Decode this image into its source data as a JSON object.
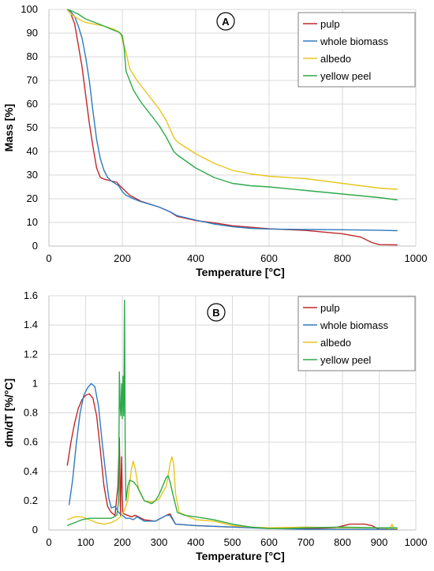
{
  "chart_data": [
    {
      "type": "line",
      "panel_label": "A",
      "xlabel": "Temperature [°C]",
      "ylabel": "Mass [%]",
      "xlim": [
        0,
        1000
      ],
      "ylim": [
        0,
        100
      ],
      "xticks": [
        0,
        200,
        400,
        600,
        800,
        1000
      ],
      "yticks": [
        0,
        10,
        20,
        30,
        40,
        50,
        60,
        70,
        80,
        90,
        100
      ],
      "grid": true,
      "legend_position": "top-right",
      "series": [
        {
          "name": "pulp",
          "color": "#c0282a",
          "points": [
            [
              50,
              100
            ],
            [
              60,
              98
            ],
            [
              70,
              94
            ],
            [
              80,
              85
            ],
            [
              90,
              76
            ],
            [
              100,
              64
            ],
            [
              110,
              52
            ],
            [
              120,
              42
            ],
            [
              130,
              33
            ],
            [
              140,
              29
            ],
            [
              150,
              28.3
            ],
            [
              170,
              27.5
            ],
            [
              185,
              27
            ],
            [
              190,
              26
            ],
            [
              200,
              24.5
            ],
            [
              220,
              21.5
            ],
            [
              250,
              19
            ],
            [
              300,
              16.5
            ],
            [
              330,
              14.5
            ],
            [
              350,
              12.5
            ],
            [
              400,
              10.8
            ],
            [
              450,
              9.8
            ],
            [
              500,
              8.6
            ],
            [
              600,
              7.3
            ],
            [
              700,
              6.6
            ],
            [
              800,
              5.2
            ],
            [
              850,
              3.8
            ],
            [
              880,
              1.5
            ],
            [
              900,
              0.6
            ],
            [
              950,
              0.5
            ]
          ]
        },
        {
          "name": "whole biomass",
          "color": "#2e7bbf",
          "points": [
            [
              50,
              100
            ],
            [
              60,
              99
            ],
            [
              70,
              97
            ],
            [
              80,
              93
            ],
            [
              90,
              88
            ],
            [
              100,
              80
            ],
            [
              110,
              70
            ],
            [
              120,
              57
            ],
            [
              130,
              45
            ],
            [
              140,
              37
            ],
            [
              150,
              32
            ],
            [
              160,
              29
            ],
            [
              170,
              27.5
            ],
            [
              180,
              26.5
            ],
            [
              190,
              25.5
            ],
            [
              200,
              23
            ],
            [
              210,
              21.5
            ],
            [
              230,
              20
            ],
            [
              250,
              18.8
            ],
            [
              300,
              16.5
            ],
            [
              330,
              14.5
            ],
            [
              350,
              12.8
            ],
            [
              400,
              11
            ],
            [
              450,
              9.3
            ],
            [
              500,
              8.2
            ],
            [
              550,
              7.5
            ],
            [
              600,
              7.2
            ],
            [
              700,
              7
            ],
            [
              800,
              6.9
            ],
            [
              900,
              6.7
            ],
            [
              950,
              6.5
            ]
          ]
        },
        {
          "name": "albedo",
          "color": "#e8c51c",
          "points": [
            [
              50,
              100
            ],
            [
              60,
              98
            ],
            [
              80,
              96
            ],
            [
              100,
              94.5
            ],
            [
              150,
              93
            ],
            [
              180,
              91.5
            ],
            [
              195,
              90
            ],
            [
              200,
              87
            ],
            [
              210,
              82
            ],
            [
              220,
              75
            ],
            [
              240,
              70
            ],
            [
              260,
              66
            ],
            [
              280,
              62
            ],
            [
              300,
              58
            ],
            [
              320,
              53
            ],
            [
              340,
              46
            ],
            [
              350,
              44
            ],
            [
              400,
              39
            ],
            [
              450,
              35
            ],
            [
              500,
              32
            ],
            [
              550,
              30.5
            ],
            [
              600,
              29.5
            ],
            [
              700,
              28.5
            ],
            [
              800,
              26.5
            ],
            [
              900,
              24.5
            ],
            [
              950,
              24
            ]
          ]
        },
        {
          "name": "yellow peel",
          "color": "#2eaa4a",
          "points": [
            [
              50,
              100
            ],
            [
              60,
              99.5
            ],
            [
              80,
              98
            ],
            [
              100,
              96
            ],
            [
              150,
              93
            ],
            [
              180,
              91
            ],
            [
              190,
              90.5
            ],
            [
              200,
              89
            ],
            [
              205,
              84
            ],
            [
              210,
              74
            ],
            [
              215,
              72
            ],
            [
              230,
              66
            ],
            [
              250,
              61
            ],
            [
              280,
              55
            ],
            [
              300,
              51
            ],
            [
              320,
              46
            ],
            [
              340,
              40
            ],
            [
              350,
              38.5
            ],
            [
              400,
              33
            ],
            [
              450,
              29
            ],
            [
              500,
              26.5
            ],
            [
              550,
              25.5
            ],
            [
              600,
              25
            ],
            [
              700,
              23.5
            ],
            [
              800,
              22
            ],
            [
              900,
              20.5
            ],
            [
              950,
              19.5
            ]
          ]
        }
      ]
    },
    {
      "type": "line",
      "panel_label": "B",
      "xlabel": "Temperature [°C]",
      "ylabel": "dm/dT [%/°C]",
      "xlim": [
        0,
        1000
      ],
      "ylim": [
        0,
        1.6
      ],
      "xticks": [
        0,
        100,
        200,
        300,
        400,
        500,
        600,
        700,
        800,
        900,
        1000
      ],
      "yticks": [
        0,
        0.2,
        0.4,
        0.6,
        0.8,
        1,
        1.2,
        1.4,
        1.6
      ],
      "ytick_labels": [
        "0",
        "0.2",
        "0.4",
        "0.6",
        "0.8",
        "1",
        "1.2",
        "1.4",
        "1.6"
      ],
      "grid": true,
      "legend_position": "top-right",
      "series": [
        {
          "name": "pulp",
          "color": "#c0282a",
          "points": [
            [
              50,
              0.44
            ],
            [
              60,
              0.6
            ],
            [
              70,
              0.73
            ],
            [
              80,
              0.83
            ],
            [
              90,
              0.89
            ],
            [
              100,
              0.92
            ],
            [
              110,
              0.93
            ],
            [
              120,
              0.9
            ],
            [
              130,
              0.78
            ],
            [
              140,
              0.55
            ],
            [
              150,
              0.3
            ],
            [
              160,
              0.16
            ],
            [
              170,
              0.12
            ],
            [
              180,
              0.1
            ],
            [
              188,
              0.3
            ],
            [
              192,
              0.63
            ],
            [
              195,
              0.1
            ],
            [
              198,
              0.5
            ],
            [
              201,
              0.12
            ],
            [
              205,
              0.11
            ],
            [
              215,
              0.1
            ],
            [
              225,
              0.09
            ],
            [
              235,
              0.1
            ],
            [
              260,
              0.07
            ],
            [
              290,
              0.06
            ],
            [
              320,
              0.1
            ],
            [
              330,
              0.11
            ],
            [
              345,
              0.04
            ],
            [
              400,
              0.03
            ],
            [
              500,
              0.02
            ],
            [
              600,
              0.015
            ],
            [
              700,
              0.01
            ],
            [
              780,
              0.015
            ],
            [
              820,
              0.04
            ],
            [
              860,
              0.04
            ],
            [
              880,
              0.03
            ],
            [
              900,
              0.005
            ],
            [
              950,
              0.005
            ]
          ]
        },
        {
          "name": "whole biomass",
          "color": "#2e7bbf",
          "points": [
            [
              55,
              0.17
            ],
            [
              65,
              0.35
            ],
            [
              75,
              0.6
            ],
            [
              85,
              0.8
            ],
            [
              95,
              0.92
            ],
            [
              105,
              0.97
            ],
            [
              115,
              1.0
            ],
            [
              125,
              0.98
            ],
            [
              135,
              0.85
            ],
            [
              145,
              0.6
            ],
            [
              155,
              0.38
            ],
            [
              163,
              0.22
            ],
            [
              170,
              0.15
            ],
            [
              180,
              0.16
            ],
            [
              190,
              0.12
            ],
            [
              200,
              0.1
            ],
            [
              210,
              0.08
            ],
            [
              220,
              0.08
            ],
            [
              230,
              0.07
            ],
            [
              240,
              0.09
            ],
            [
              260,
              0.06
            ],
            [
              290,
              0.06
            ],
            [
              320,
              0.1
            ],
            [
              330,
              0.1
            ],
            [
              345,
              0.04
            ],
            [
              400,
              0.03
            ],
            [
              450,
              0.025
            ],
            [
              500,
              0.02
            ],
            [
              600,
              0.01
            ],
            [
              700,
              0.005
            ],
            [
              800,
              0.005
            ],
            [
              900,
              0.005
            ],
            [
              950,
              0.005
            ]
          ]
        },
        {
          "name": "albedo",
          "color": "#e8c51c",
          "points": [
            [
              50,
              0.07
            ],
            [
              70,
              0.09
            ],
            [
              90,
              0.09
            ],
            [
              110,
              0.07
            ],
            [
              130,
              0.05
            ],
            [
              150,
              0.04
            ],
            [
              170,
              0.05
            ],
            [
              185,
              0.07
            ],
            [
              195,
              0.09
            ],
            [
              205,
              0.13
            ],
            [
              215,
              0.2
            ],
            [
              225,
              0.42
            ],
            [
              230,
              0.47
            ],
            [
              235,
              0.42
            ],
            [
              245,
              0.27
            ],
            [
              260,
              0.2
            ],
            [
              280,
              0.19
            ],
            [
              300,
              0.21
            ],
            [
              320,
              0.3
            ],
            [
              330,
              0.45
            ],
            [
              335,
              0.5
            ],
            [
              340,
              0.45
            ],
            [
              345,
              0.25
            ],
            [
              355,
              0.12
            ],
            [
              400,
              0.07
            ],
            [
              450,
              0.06
            ],
            [
              500,
              0.03
            ],
            [
              550,
              0.02
            ],
            [
              600,
              0.015
            ],
            [
              700,
              0.02
            ],
            [
              800,
              0.015
            ],
            [
              900,
              0.015
            ],
            [
              930,
              0.01
            ],
            [
              935,
              0.04
            ],
            [
              940,
              0.01
            ],
            [
              950,
              0.01
            ]
          ]
        },
        {
          "name": "yellow peel",
          "color": "#2eaa4a",
          "points": [
            [
              50,
              0.03
            ],
            [
              70,
              0.05
            ],
            [
              90,
              0.07
            ],
            [
              110,
              0.08
            ],
            [
              130,
              0.08
            ],
            [
              150,
              0.08
            ],
            [
              170,
              0.08
            ],
            [
              185,
              0.1
            ],
            [
              190,
              0.2
            ],
            [
              192,
              1.08
            ],
            [
              194,
              0.85
            ],
            [
              196,
              0.78
            ],
            [
              198,
              1.0
            ],
            [
              200,
              0.76
            ],
            [
              202,
              1.05
            ],
            [
              204,
              0.78
            ],
            [
              206,
              1.57
            ],
            [
              208,
              0.5
            ],
            [
              210,
              0.2
            ],
            [
              215,
              0.3
            ],
            [
              220,
              0.34
            ],
            [
              230,
              0.33
            ],
            [
              240,
              0.3
            ],
            [
              250,
              0.25
            ],
            [
              260,
              0.2
            ],
            [
              270,
              0.19
            ],
            [
              280,
              0.18
            ],
            [
              290,
              0.2
            ],
            [
              300,
              0.24
            ],
            [
              310,
              0.3
            ],
            [
              320,
              0.36
            ],
            [
              325,
              0.37
            ],
            [
              330,
              0.33
            ],
            [
              340,
              0.22
            ],
            [
              350,
              0.12
            ],
            [
              370,
              0.1
            ],
            [
              400,
              0.09
            ],
            [
              450,
              0.07
            ],
            [
              500,
              0.04
            ],
            [
              550,
              0.02
            ],
            [
              600,
              0.01
            ],
            [
              650,
              0.01
            ],
            [
              700,
              0.015
            ],
            [
              800,
              0.02
            ],
            [
              900,
              0.015
            ],
            [
              950,
              0.015
            ]
          ]
        }
      ]
    }
  ]
}
